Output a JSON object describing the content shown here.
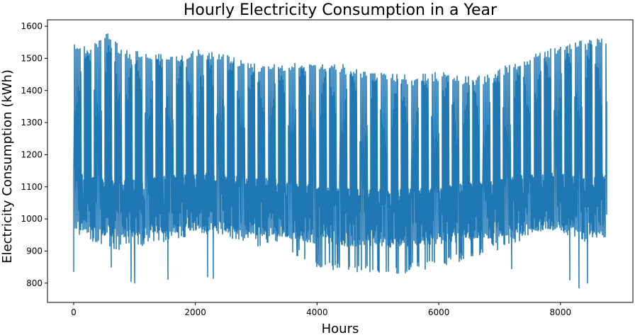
{
  "chart_data": {
    "type": "line",
    "title": "Hourly Electricity Consumption in a Year",
    "xlabel": "Hours",
    "ylabel": "Electricity Consumption (kWh)",
    "xlim": [
      -430,
      9190
    ],
    "ylim": [
      740,
      1620
    ],
    "xticks": [
      0,
      2000,
      4000,
      6000,
      8000
    ],
    "yticks": [
      800,
      900,
      1000,
      1100,
      1200,
      1300,
      1400,
      1500,
      1600
    ],
    "grid": false,
    "legend": "none",
    "line_color": "#1f77b4",
    "n_points": 8760,
    "series": [
      {
        "x_start": 0,
        "x_end": 8759,
        "daily_peak_envelope": [
          [
            0,
            1530
          ],
          [
            300,
            1520
          ],
          [
            500,
            1575
          ],
          [
            800,
            1510
          ],
          [
            1200,
            1500
          ],
          [
            1600,
            1490
          ],
          [
            2000,
            1510
          ],
          [
            2400,
            1500
          ],
          [
            2800,
            1475
          ],
          [
            3200,
            1460
          ],
          [
            3600,
            1470
          ],
          [
            4000,
            1470
          ],
          [
            4400,
            1465
          ],
          [
            4800,
            1440
          ],
          [
            5200,
            1435
          ],
          [
            5600,
            1430
          ],
          [
            6000,
            1440
          ],
          [
            6400,
            1425
          ],
          [
            6800,
            1430
          ],
          [
            7200,
            1470
          ],
          [
            7600,
            1500
          ],
          [
            8000,
            1520
          ],
          [
            8400,
            1540
          ],
          [
            8759,
            1545
          ]
        ],
        "daily_base_envelope": [
          [
            0,
            985
          ],
          [
            300,
            960
          ],
          [
            800,
            920
          ],
          [
            1200,
            950
          ],
          [
            1600,
            960
          ],
          [
            2000,
            985
          ],
          [
            2400,
            980
          ],
          [
            2800,
            950
          ],
          [
            3200,
            940
          ],
          [
            3600,
            920
          ],
          [
            4000,
            880
          ],
          [
            4400,
            860
          ],
          [
            4800,
            860
          ],
          [
            5200,
            855
          ],
          [
            5600,
            865
          ],
          [
            6000,
            880
          ],
          [
            6400,
            900
          ],
          [
            6800,
            920
          ],
          [
            7200,
            950
          ],
          [
            7600,
            980
          ],
          [
            8000,
            985
          ],
          [
            8400,
            960
          ],
          [
            8759,
            975
          ]
        ],
        "minimum_dips": [
          [
            0,
            835
          ],
          [
            620,
            850
          ],
          [
            950,
            805
          ],
          [
            1000,
            800
          ],
          [
            1550,
            812
          ],
          [
            2200,
            820
          ],
          [
            2300,
            815
          ],
          [
            7200,
            845
          ],
          [
            8150,
            810
          ],
          [
            8300,
            785
          ],
          [
            8450,
            800
          ]
        ]
      }
    ]
  }
}
